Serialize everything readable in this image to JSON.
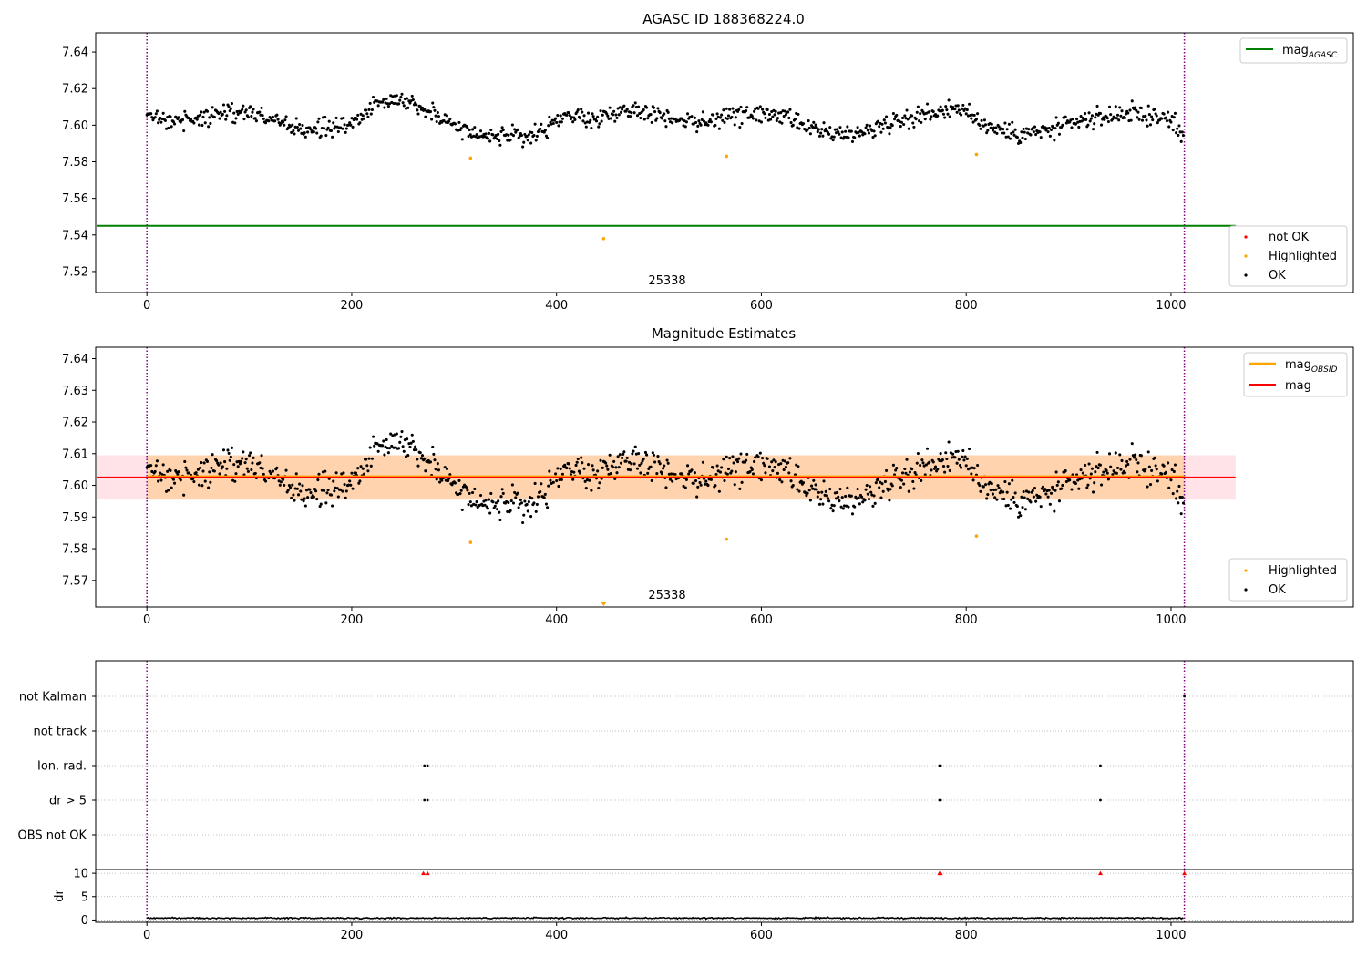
{
  "colors": {
    "ok": "#000000",
    "highlighted": "#ffa500",
    "not_ok": "#ff0000",
    "mag_agasc": "#008000",
    "mag_obsid": "#ffa500",
    "mag": "#ff0000",
    "obsid_boundary": "#800080",
    "grid": "#b0b0b0",
    "band_obsid": "#ffa500",
    "band_mag": "#ffc0cb"
  },
  "chart_data": [
    {
      "id": "agasc",
      "type": "scatter",
      "title": "AGASC ID 188368224.0",
      "xlim": [
        -50,
        1178
      ],
      "ylim": [
        7.5085,
        7.6505
      ],
      "xticks": [
        "0",
        "200",
        "400",
        "600",
        "800",
        "1000"
      ],
      "yticks": [
        "7.52",
        "7.54",
        "7.56",
        "7.58",
        "7.60",
        "7.62",
        "7.64"
      ],
      "obsid_label": "25338",
      "obsid_boundaries": [
        0,
        1013
      ],
      "mag_agasc": 7.545,
      "mag_agasc_x_range": [
        -50,
        1063
      ],
      "highlighted_points": [
        [
          316,
          7.582
        ],
        [
          446,
          7.538
        ],
        [
          566,
          7.583
        ],
        [
          810,
          7.584
        ]
      ],
      "ok_trend_knots": [
        [
          0,
          7.604
        ],
        [
          50,
          7.603
        ],
        [
          70,
          7.607
        ],
        [
          100,
          7.607
        ],
        [
          120,
          7.604
        ],
        [
          150,
          7.597
        ],
        [
          200,
          7.6
        ],
        [
          230,
          7.615
        ],
        [
          260,
          7.613
        ],
        [
          300,
          7.6
        ],
        [
          320,
          7.596
        ],
        [
          350,
          7.593
        ],
        [
          380,
          7.595
        ],
        [
          410,
          7.605
        ],
        [
          440,
          7.603
        ],
        [
          470,
          7.609
        ],
        [
          500,
          7.606
        ],
        [
          540,
          7.601
        ],
        [
          570,
          7.605
        ],
        [
          600,
          7.606
        ],
        [
          620,
          7.605
        ],
        [
          640,
          7.599
        ],
        [
          670,
          7.595
        ],
        [
          700,
          7.596
        ],
        [
          730,
          7.603
        ],
        [
          760,
          7.606
        ],
        [
          790,
          7.61
        ],
        [
          820,
          7.6
        ],
        [
          850,
          7.595
        ],
        [
          880,
          7.597
        ],
        [
          920,
          7.603
        ],
        [
          960,
          7.607
        ],
        [
          1000,
          7.603
        ],
        [
          1013,
          7.594
        ]
      ],
      "ok_noise": 0.0055,
      "ok_count": 1013,
      "legend_lines": [
        {
          "label": "mag",
          "sub": "AGASC",
          "color_key": "mag_agasc"
        }
      ],
      "legend_points": [
        {
          "label": "not OK",
          "color_key": "not_ok"
        },
        {
          "label": "Highlighted",
          "color_key": "highlighted"
        },
        {
          "label": "OK",
          "color_key": "ok"
        }
      ]
    },
    {
      "id": "estimates",
      "type": "scatter",
      "title": "Magnitude Estimates",
      "xlim": [
        -50,
        1178
      ],
      "ylim": [
        7.5616,
        7.6436
      ],
      "xticks": [
        "0",
        "200",
        "400",
        "600",
        "800",
        "1000"
      ],
      "yticks": [
        "7.57",
        "7.58",
        "7.59",
        "7.60",
        "7.61",
        "7.62",
        "7.63",
        "7.64"
      ],
      "obsid_label": "25338",
      "obsid_boundaries": [
        0,
        1013
      ],
      "mag": 7.6025,
      "mag_x_range": [
        -50,
        1063
      ],
      "mag_band": [
        7.5955,
        7.6095
      ],
      "mag_obsid": 7.6027,
      "mag_obsid_x_range": [
        0,
        1013
      ],
      "mag_obsid_band": [
        7.5955,
        7.6095
      ],
      "highlighted_points": [
        [
          316,
          7.582
        ],
        [
          566,
          7.583
        ],
        [
          810,
          7.584
        ]
      ],
      "off_scale_marker_x": 446,
      "ok_trend_knots": [
        [
          0,
          7.604
        ],
        [
          50,
          7.603
        ],
        [
          70,
          7.607
        ],
        [
          100,
          7.607
        ],
        [
          120,
          7.604
        ],
        [
          150,
          7.597
        ],
        [
          200,
          7.6
        ],
        [
          230,
          7.615
        ],
        [
          260,
          7.613
        ],
        [
          300,
          7.6
        ],
        [
          320,
          7.596
        ],
        [
          350,
          7.593
        ],
        [
          380,
          7.595
        ],
        [
          410,
          7.605
        ],
        [
          440,
          7.603
        ],
        [
          470,
          7.609
        ],
        [
          500,
          7.606
        ],
        [
          540,
          7.601
        ],
        [
          570,
          7.605
        ],
        [
          600,
          7.606
        ],
        [
          620,
          7.605
        ],
        [
          640,
          7.599
        ],
        [
          670,
          7.595
        ],
        [
          700,
          7.596
        ],
        [
          730,
          7.603
        ],
        [
          760,
          7.606
        ],
        [
          790,
          7.61
        ],
        [
          820,
          7.6
        ],
        [
          850,
          7.595
        ],
        [
          880,
          7.597
        ],
        [
          920,
          7.603
        ],
        [
          960,
          7.607
        ],
        [
          1000,
          7.603
        ],
        [
          1013,
          7.594
        ]
      ],
      "ok_noise": 0.0055,
      "ok_count": 1013,
      "legend_lines": [
        {
          "label": "mag",
          "sub": "OBSID",
          "color_key": "mag_obsid"
        },
        {
          "label": "mag",
          "sub": "",
          "color_key": "mag"
        }
      ],
      "legend_points": [
        {
          "label": "Highlighted",
          "color_key": "highlighted"
        },
        {
          "label": "OK",
          "color_key": "ok"
        }
      ]
    },
    {
      "id": "flags",
      "type": "scatter",
      "title": "",
      "xlim": [
        -50,
        1178
      ],
      "categories": [
        "not Kalman",
        "not track",
        "Ion. rad.",
        "dr > 5",
        "OBS not OK"
      ],
      "obsid_boundaries": [
        0,
        1013
      ],
      "flag_points": {
        "not Kalman": [
          1013
        ],
        "not track": [],
        "Ion. rad.": [
          271,
          274,
          774,
          775,
          931
        ],
        "dr > 5": [
          271,
          274,
          774,
          775,
          931
        ],
        "OBS not OK": []
      }
    },
    {
      "id": "dr",
      "type": "line",
      "title": "",
      "xlim": [
        -50,
        1178
      ],
      "ylim": [
        -0.5,
        10.8
      ],
      "ylabel": "dr",
      "xticks": [
        "0",
        "200",
        "400",
        "600",
        "800",
        "1000"
      ],
      "yticks": [
        "0",
        "5",
        "10"
      ],
      "obsid_boundaries": [
        0,
        1013
      ],
      "dr_typical": 0.4,
      "dr_noise": 0.25,
      "dr_count": 1013,
      "clipped_points": [
        270,
        274,
        774,
        775,
        931,
        1013
      ]
    }
  ]
}
